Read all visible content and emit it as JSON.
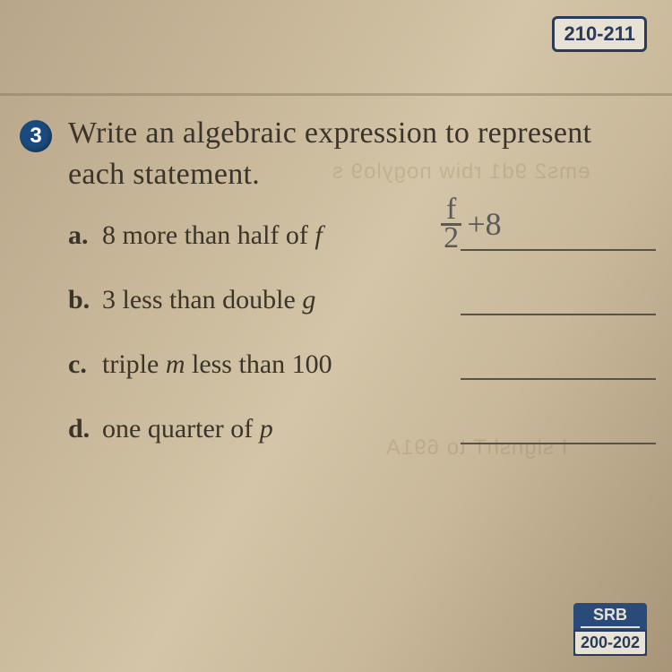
{
  "top_ref": "210-211",
  "bottom_ref_label": "SRB",
  "bottom_ref_pages": "200-202",
  "question_number": "3",
  "instruction": "Write an algebraic expression to represent each statement.",
  "items": [
    {
      "letter": "a.",
      "text_pre": "8 more than half of ",
      "var": "f",
      "text_post": ""
    },
    {
      "letter": "b.",
      "text_pre": "3 less than double ",
      "var": "g",
      "text_post": ""
    },
    {
      "letter": "c.",
      "text_pre": "triple ",
      "var": "m",
      "text_post": " less than 100"
    },
    {
      "letter": "d.",
      "text_pre": "one quarter of ",
      "var": "p",
      "text_post": ""
    }
  ],
  "handwritten": {
    "numerator": "f",
    "denominator": "2",
    "rest": "+8"
  },
  "colors": {
    "badge_bg": "#1a4a7e",
    "ref_border": "#2a3a5a",
    "text": "#3a342a",
    "pencil": "#5a5a5a"
  }
}
